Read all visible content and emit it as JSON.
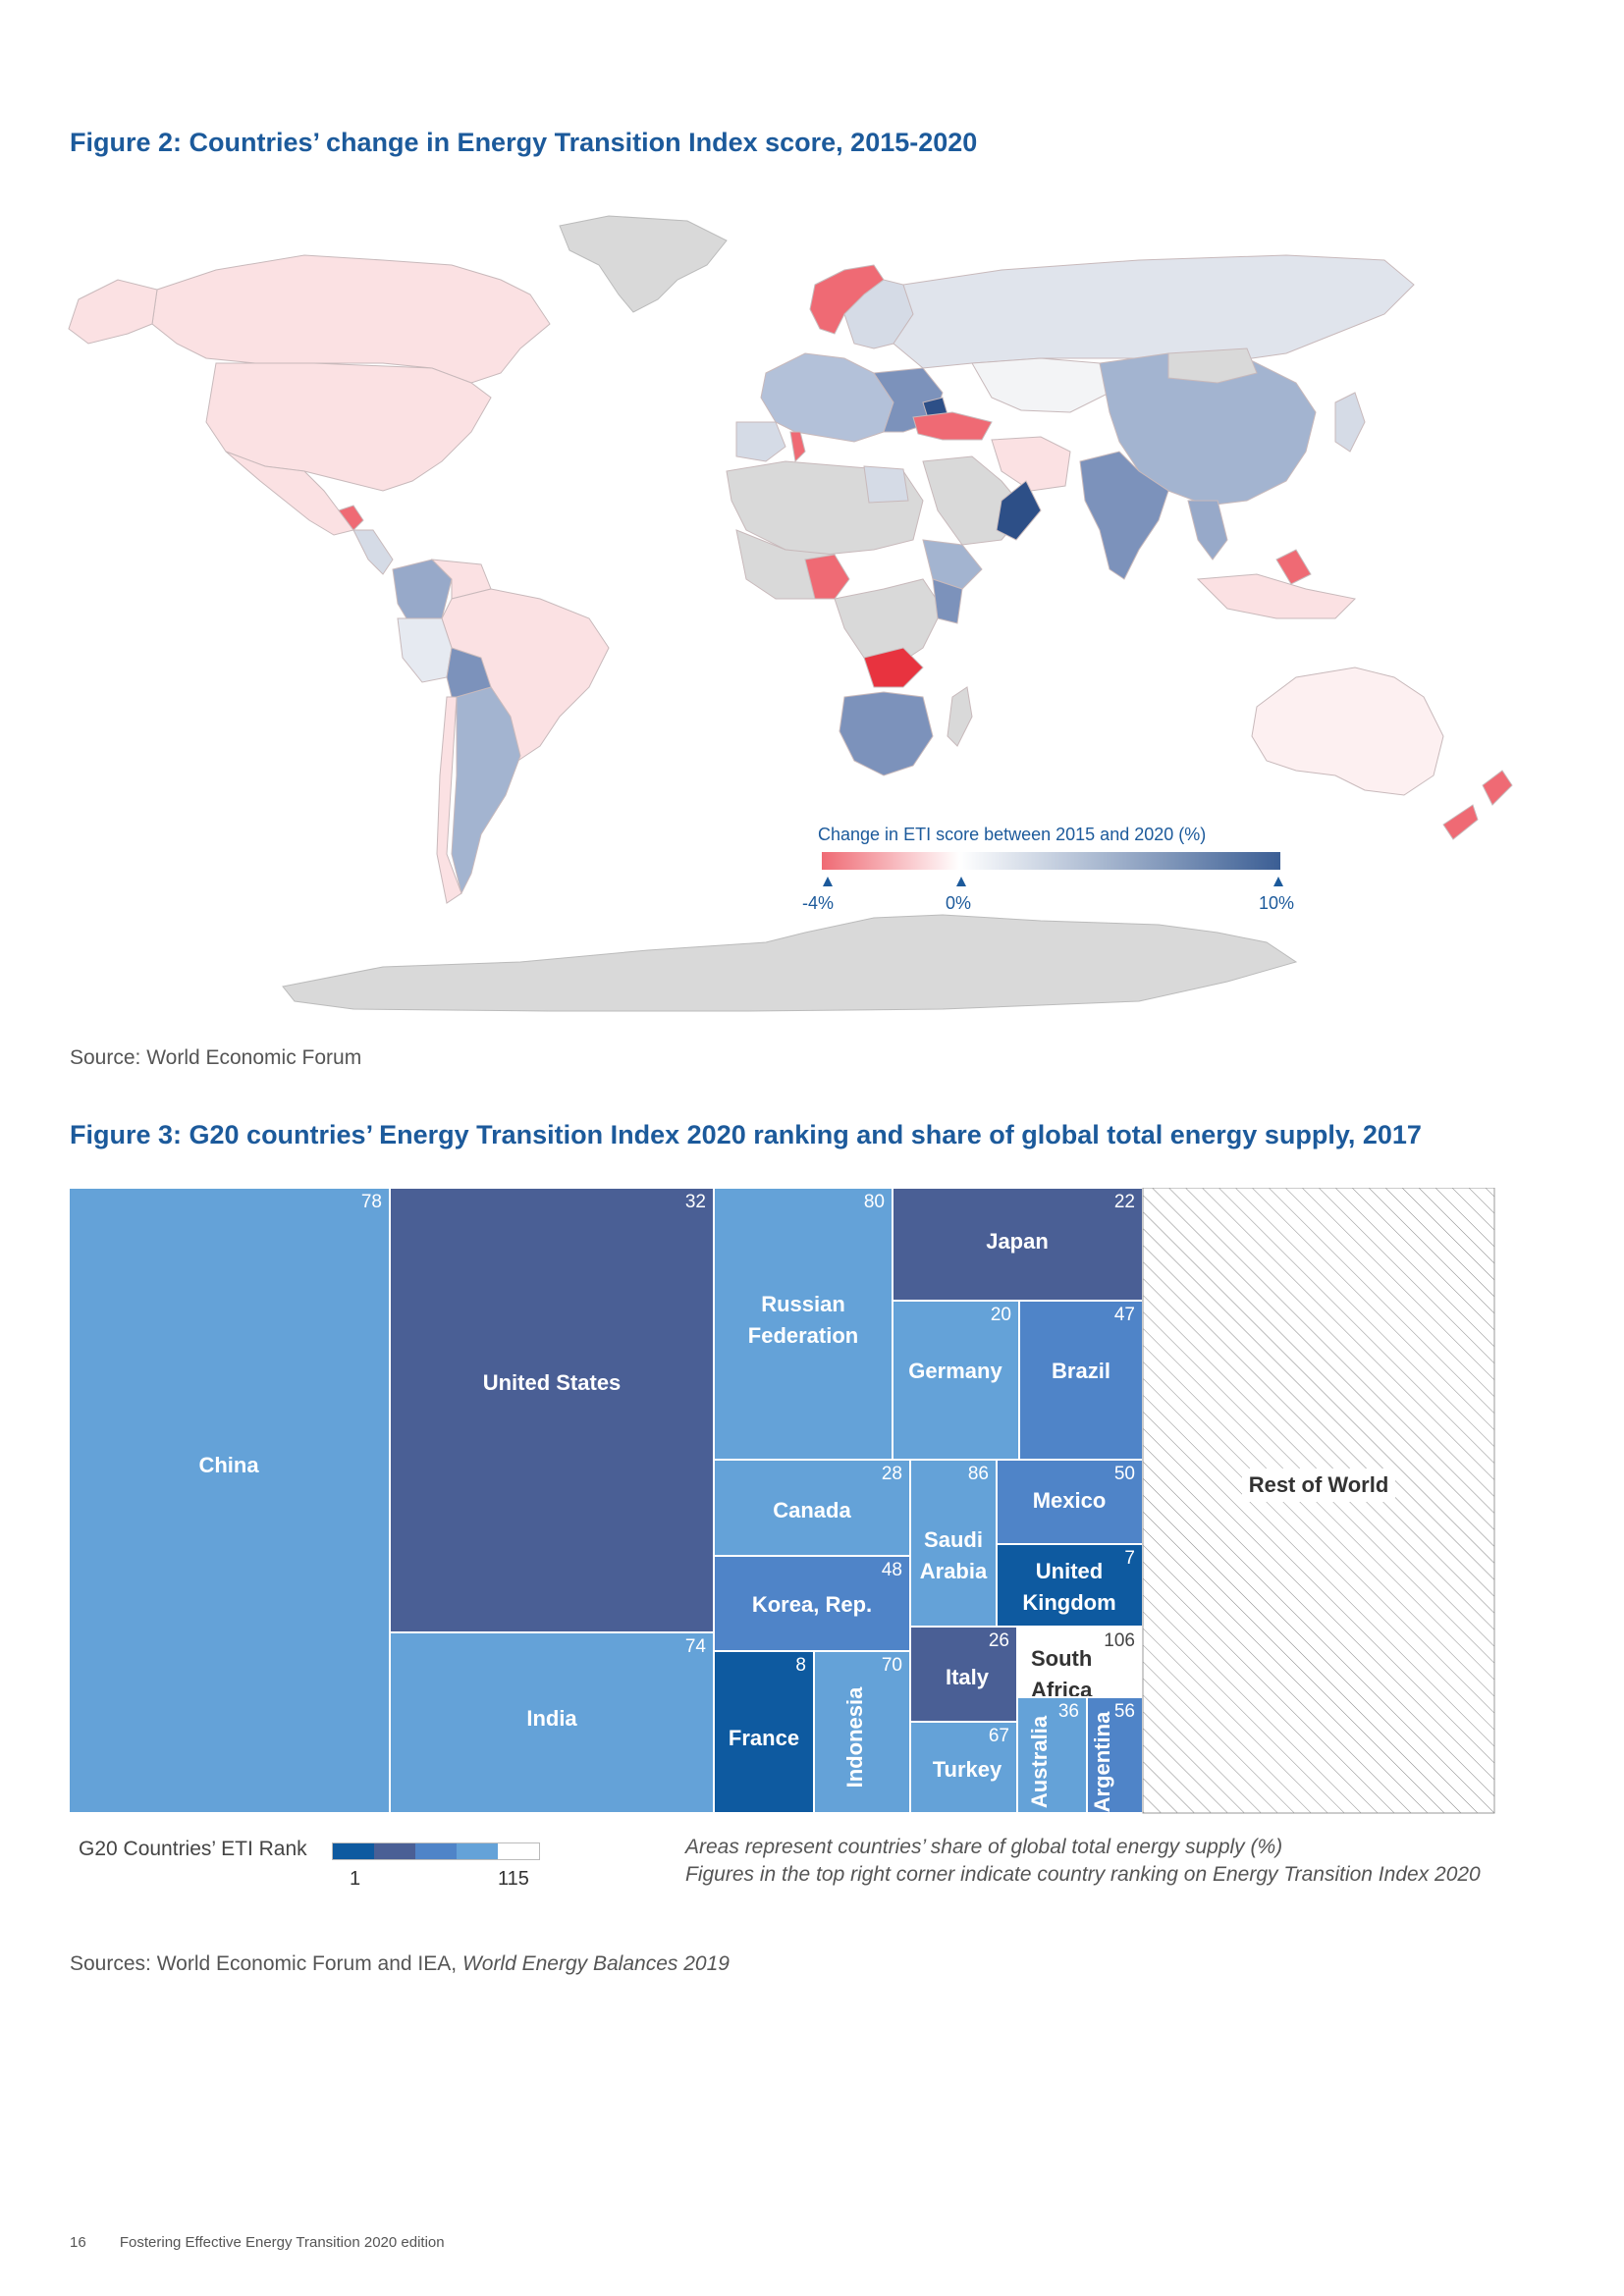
{
  "figure2": {
    "title": "Figure 2: Countries’ change in Energy Transition Index score, 2015-2020",
    "legend": {
      "title": "Change in ETI score between 2015 and 2020 (%)",
      "ticks": [
        "-4%",
        "0%",
        "10%"
      ],
      "colors": {
        "negative": "#ef6a74",
        "zero": "#ffffff",
        "positive": "#3b5e94"
      }
    },
    "source": "Source: World Economic Forum"
  },
  "figure3": {
    "title": "Figure 3: G20 countries’ Energy Transition Index 2020 ranking and share of global total energy supply, 2017",
    "chart_data": {
      "type": "treemap",
      "value_meaning": "Areas represent countries’ share of global total energy supply (%)",
      "rank_meaning": "Figures in the top right corner indicate country ranking on Energy Transition Index 2020",
      "cells": [
        {
          "name": "China",
          "rank": 78
        },
        {
          "name": "United States",
          "rank": 32
        },
        {
          "name": "India",
          "rank": 74
        },
        {
          "name": "Russian Federation",
          "rank": 80
        },
        {
          "name": "Japan",
          "rank": 22
        },
        {
          "name": "Germany",
          "rank": 20
        },
        {
          "name": "Brazil",
          "rank": 47
        },
        {
          "name": "Canada",
          "rank": 28
        },
        {
          "name": "Saudi Arabia",
          "rank": 86
        },
        {
          "name": "Mexico",
          "rank": 50
        },
        {
          "name": "Korea, Rep.",
          "rank": 48
        },
        {
          "name": "United Kingdom",
          "rank": 7
        },
        {
          "name": "Italy",
          "rank": 26
        },
        {
          "name": "South Africa",
          "rank": 106
        },
        {
          "name": "France",
          "rank": 8
        },
        {
          "name": "Indonesia",
          "rank": 70
        },
        {
          "name": "Turkey",
          "rank": 67
        },
        {
          "name": "Australia",
          "rank": 36
        },
        {
          "name": "Argentina",
          "rank": 56
        },
        {
          "name": "Rest of World",
          "rank": null
        }
      ]
    },
    "rank_legend": {
      "label": "G20 Countries’ ETI Rank",
      "min": "1",
      "max": "115",
      "colors": [
        "#0e5aa0",
        "#4a5f95",
        "#4f84c8",
        "#64a2d8",
        "#ffffff"
      ]
    },
    "notes": [
      "Areas represent countries’ share of global total energy supply (%)",
      "Figures in the top right corner indicate country ranking on Energy Transition Index 2020"
    ],
    "source_prefix": "Sources: World Economic Forum and IEA, ",
    "source_italic": "World Energy Balances 2019"
  },
  "footer": {
    "page": "16",
    "publication": "Fostering Effective Energy Transition 2020 edition"
  }
}
